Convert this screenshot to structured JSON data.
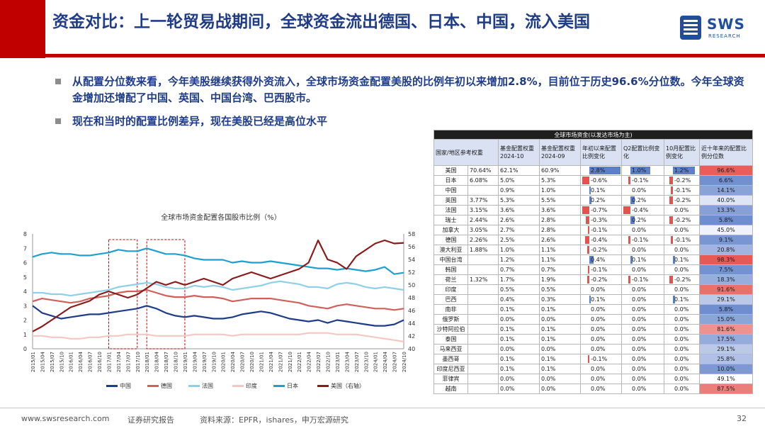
{
  "header": {
    "title": "资金对比：上一轮贸易战期间，全球资金流出德国、日本、中国，流入美国",
    "logo_text": "SWS",
    "logo_sub": "RESEARCH"
  },
  "bullets": [
    "从配置分位数来看，今年美股继续获得外资流入，全球市场资金配置美股的比例年初以来增加2.8%，目前位于历史96.6%分位数。今年全球资金增加还增配了中国、英国、中国台湾、巴西股市。",
    "现在和当时的配置比例差异，现在美股已经是高位水平"
  ],
  "footer": {
    "url": "www.swsresearch.com",
    "report": "证券研究报告",
    "source": "资料来源：EPFR，ishares，申万宏源研究",
    "page": "32"
  },
  "colors": {
    "china": "#1f3c88",
    "germany": "#d0605a",
    "france": "#8fcfe8",
    "india": "#f4c7c3",
    "japan": "#1f9fd0",
    "usa": "#8b1a1a",
    "accent": "#c00000"
  },
  "chart_data": {
    "type": "line",
    "title": "全球市场资金配置各国股市比例（%）",
    "x_ticks": [
      "2015/01",
      "2015/04",
      "2015/07",
      "2015/10",
      "2016/01",
      "2016/04",
      "2016/07",
      "2016/10",
      "2017/01",
      "2017/04",
      "2017/07",
      "2017/10",
      "2018/01",
      "2018/04",
      "2018/07",
      "2018/10",
      "2019/01",
      "2019/04",
      "2019/07",
      "2019/10",
      "2020/01",
      "2020/04",
      "2020/07",
      "2020/10",
      "2021/01",
      "2021/04",
      "2021/07",
      "2021/10",
      "2022/01",
      "2022/04",
      "2022/07",
      "2022/10",
      "2023/01",
      "2023/04",
      "2023/07",
      "2023/10",
      "2024/01",
      "2024/04",
      "2024/07",
      "2024/10"
    ],
    "y_left_ticks": [
      "0",
      "1",
      "2",
      "3",
      "4",
      "5",
      "6",
      "7",
      "8"
    ],
    "y_right_ticks": [
      "40",
      "42",
      "44",
      "46",
      "48",
      "50",
      "52",
      "54",
      "56",
      "58"
    ],
    "ylim_left": [
      0,
      8
    ],
    "ylim_right": [
      40,
      58
    ],
    "series": [
      {
        "name": "中国",
        "axis": "left",
        "values": [
          3.0,
          2.5,
          2.3,
          2.1,
          2.2,
          2.3,
          2.4,
          2.4,
          2.5,
          2.6,
          2.7,
          2.8,
          3.0,
          2.8,
          2.5,
          2.3,
          2.2,
          2.3,
          2.2,
          2.1,
          2.1,
          2.2,
          2.4,
          2.5,
          2.6,
          2.5,
          2.3,
          2.1,
          2.0,
          1.9,
          2.0,
          1.8,
          2.0,
          1.9,
          1.8,
          1.7,
          1.6,
          1.6,
          1.7,
          2.0
        ]
      },
      {
        "name": "德国",
        "axis": "left",
        "values": [
          3.3,
          3.5,
          3.4,
          3.3,
          3.2,
          3.3,
          3.5,
          3.6,
          3.7,
          3.9,
          4.0,
          4.0,
          4.1,
          3.9,
          3.7,
          3.6,
          3.6,
          3.7,
          3.6,
          3.6,
          3.5,
          3.3,
          3.4,
          3.5,
          3.5,
          3.5,
          3.4,
          3.3,
          3.2,
          3.0,
          2.9,
          2.8,
          3.0,
          3.1,
          3.0,
          2.9,
          2.8,
          2.8,
          2.7,
          2.8
        ]
      },
      {
        "name": "法国",
        "axis": "left",
        "values": [
          3.9,
          3.9,
          3.8,
          3.8,
          3.7,
          3.8,
          3.9,
          4.0,
          4.1,
          4.3,
          4.4,
          4.5,
          4.6,
          4.5,
          4.3,
          4.2,
          4.2,
          4.4,
          4.3,
          4.4,
          4.3,
          4.1,
          4.2,
          4.3,
          4.4,
          4.6,
          4.7,
          4.6,
          4.5,
          4.3,
          4.3,
          4.2,
          4.5,
          4.6,
          4.5,
          4.3,
          4.2,
          4.3,
          4.2,
          4.1
        ]
      },
      {
        "name": "印度",
        "axis": "left",
        "values": [
          0.9,
          0.9,
          0.8,
          0.8,
          0.7,
          0.7,
          0.8,
          0.8,
          0.9,
          0.9,
          1.0,
          1.0,
          1.0,
          0.9,
          0.9,
          0.9,
          0.9,
          1.0,
          1.0,
          1.0,
          1.0,
          0.9,
          1.0,
          1.0,
          1.0,
          1.0,
          1.0,
          1.0,
          1.0,
          1.1,
          1.1,
          1.1,
          1.0,
          1.0,
          1.0,
          0.9,
          0.8,
          0.7,
          0.6,
          0.5
        ]
      },
      {
        "name": "日本",
        "axis": "left",
        "values": [
          6.4,
          6.6,
          6.7,
          6.6,
          6.6,
          6.5,
          6.5,
          6.6,
          6.7,
          6.9,
          6.8,
          6.8,
          7.0,
          6.8,
          6.6,
          6.6,
          6.5,
          6.3,
          6.2,
          6.2,
          6.2,
          6.0,
          6.1,
          6.0,
          6.0,
          6.1,
          6.0,
          5.9,
          5.8,
          5.7,
          5.6,
          5.6,
          5.5,
          5.6,
          5.5,
          5.4,
          5.5,
          5.7,
          5.2,
          5.3
        ]
      },
      {
        "name": "美国（右轴）",
        "axis": "right",
        "values": [
          42.7,
          43.5,
          44.5,
          45.5,
          46.5,
          47.0,
          47.5,
          48.5,
          49.0,
          48.5,
          48.0,
          48.5,
          49.5,
          50.5,
          50.0,
          50.5,
          50.0,
          50.5,
          51.0,
          50.5,
          50.0,
          51.0,
          51.5,
          52.0,
          51.5,
          51.0,
          51.5,
          52.0,
          52.5,
          53.5,
          57.0,
          54.0,
          53.5,
          52.5,
          54.5,
          55.5,
          56.5,
          57.0,
          56.5,
          56.6
        ]
      }
    ],
    "highlight_ranges": [
      [
        "2017/01",
        "2017/10"
      ],
      [
        "2018/01",
        "2019/01"
      ]
    ]
  },
  "table": {
    "title": "全球市场资金(以发达市场为主)",
    "headers": [
      "国家/地区参考权重",
      "基金配置权重2024-10",
      "基金配置权重2024-09",
      "年初以来配置比例变化",
      "Q2配置比例变化",
      "10月配置比例变化",
      "近十年来的配置比例分位数"
    ],
    "rows": [
      {
        "name": "美国",
        "weight": "70.64%",
        "w10": "62.1%",
        "w09": "60.9%",
        "ytd": "2.8%",
        "q2": "1.0%",
        "m10": "1.2%",
        "pct": "96.6%",
        "ytd_v": 2.8,
        "q2_v": 1.0,
        "m10_v": 1.2,
        "pct_v": 96.6
      },
      {
        "name": "日本",
        "weight": "6.08%",
        "w10": "5.0%",
        "w09": "5.3%",
        "ytd": "-0.6%",
        "q2": "-0.1%",
        "m10": "-0.2%",
        "pct": "6.6%",
        "ytd_v": -0.6,
        "q2_v": -0.1,
        "m10_v": -0.2,
        "pct_v": 6.6
      },
      {
        "name": "中国",
        "weight": "",
        "w10": "0.9%",
        "w09": "1.0%",
        "ytd": "0.1%",
        "q2": "0.0%",
        "m10": "-0.1%",
        "pct": "14.1%",
        "ytd_v": 0.1,
        "q2_v": 0.0,
        "m10_v": -0.1,
        "pct_v": 14.1
      },
      {
        "name": "英国",
        "weight": "3.77%",
        "w10": "5.3%",
        "w09": "5.5%",
        "ytd": "0.2%",
        "q2": "0.2%",
        "m10": "-0.2%",
        "pct": "40.0%",
        "ytd_v": 0.2,
        "q2_v": 0.2,
        "m10_v": -0.2,
        "pct_v": 40.0
      },
      {
        "name": "法国",
        "weight": "3.15%",
        "w10": "3.6%",
        "w09": "3.6%",
        "ytd": "-0.7%",
        "q2": "-0.4%",
        "m10": "0.0%",
        "pct": "13.3%",
        "ytd_v": -0.7,
        "q2_v": -0.4,
        "m10_v": 0.0,
        "pct_v": 13.3
      },
      {
        "name": "瑞士",
        "weight": "2.44%",
        "w10": "2.6%",
        "w09": "2.8%",
        "ytd": "-0.3%",
        "q2": "0.2%",
        "m10": "-0.2%",
        "pct": "5.8%",
        "ytd_v": -0.3,
        "q2_v": 0.2,
        "m10_v": -0.2,
        "pct_v": 5.8
      },
      {
        "name": "加拿大",
        "weight": "3.05%",
        "w10": "2.7%",
        "w09": "2.8%",
        "ytd": "-0.1%",
        "q2": "0.0%",
        "m10": "0.0%",
        "pct": "45.0%",
        "ytd_v": -0.1,
        "q2_v": 0.0,
        "m10_v": 0.0,
        "pct_v": 45.0
      },
      {
        "name": "德国",
        "weight": "2.26%",
        "w10": "2.5%",
        "w09": "2.6%",
        "ytd": "-0.4%",
        "q2": "-0.1%",
        "m10": "-0.1%",
        "pct": "9.1%",
        "ytd_v": -0.4,
        "q2_v": -0.1,
        "m10_v": -0.1,
        "pct_v": 9.1
      },
      {
        "name": "澳大利亚",
        "weight": "1.88%",
        "w10": "1.0%",
        "w09": "1.1%",
        "ytd": "-0.2%",
        "q2": "0.0%",
        "m10": "0.0%",
        "pct": "20.8%",
        "ytd_v": -0.2,
        "q2_v": 0.0,
        "m10_v": 0.0,
        "pct_v": 20.8
      },
      {
        "name": "中国台湾",
        "weight": "",
        "w10": "1.2%",
        "w09": "1.1%",
        "ytd": "0.4%",
        "q2": "0.1%",
        "m10": "0.1%",
        "pct": "98.3%",
        "ytd_v": 0.4,
        "q2_v": 0.1,
        "m10_v": 0.1,
        "pct_v": 98.3
      },
      {
        "name": "韩国",
        "weight": "",
        "w10": "0.7%",
        "w09": "0.7%",
        "ytd": "-0.1%",
        "q2": "0.0%",
        "m10": "0.0%",
        "pct": "7.5%",
        "ytd_v": -0.1,
        "q2_v": 0.0,
        "m10_v": 0.0,
        "pct_v": 7.5
      },
      {
        "name": "荷兰",
        "weight": "1.32%",
        "w10": "1.7%",
        "w09": "1.9%",
        "ytd": "-0.2%",
        "q2": "-0.1%",
        "m10": "-0.2%",
        "pct": "18.3%",
        "ytd_v": -0.2,
        "q2_v": -0.1,
        "m10_v": -0.2,
        "pct_v": 18.3
      },
      {
        "name": "印度",
        "weight": "",
        "w10": "0.5%",
        "w09": "0.5%",
        "ytd": "0.0%",
        "q2": "0.0%",
        "m10": "0.0%",
        "pct": "91.6%",
        "ytd_v": 0.0,
        "q2_v": 0.0,
        "m10_v": 0.0,
        "pct_v": 91.6
      },
      {
        "name": "巴西",
        "weight": "",
        "w10": "0.4%",
        "w09": "0.3%",
        "ytd": "0.1%",
        "q2": "0.0%",
        "m10": "0.1%",
        "pct": "29.1%",
        "ytd_v": 0.1,
        "q2_v": 0.0,
        "m10_v": 0.1,
        "pct_v": 29.1
      },
      {
        "name": "南非",
        "weight": "",
        "w10": "0.1%",
        "w09": "0.1%",
        "ytd": "0.0%",
        "q2": "0.0%",
        "m10": "0.0%",
        "pct": "5.8%",
        "ytd_v": 0.0,
        "q2_v": 0.0,
        "m10_v": 0.0,
        "pct_v": 5.8
      },
      {
        "name": "俄罗斯",
        "weight": "",
        "w10": "0.0%",
        "w09": "0.0%",
        "ytd": "0.0%",
        "q2": "0.0%",
        "m10": "0.0%",
        "pct": "15.0%",
        "ytd_v": 0.0,
        "q2_v": 0.0,
        "m10_v": 0.0,
        "pct_v": 15.0
      },
      {
        "name": "沙特阿拉伯",
        "weight": "",
        "w10": "0.1%",
        "w09": "0.1%",
        "ytd": "0.0%",
        "q2": "0.0%",
        "m10": "0.0%",
        "pct": "81.6%",
        "ytd_v": 0.0,
        "q2_v": 0.0,
        "m10_v": 0.0,
        "pct_v": 81.6
      },
      {
        "name": "泰国",
        "weight": "",
        "w10": "0.1%",
        "w09": "0.1%",
        "ytd": "0.0%",
        "q2": "0.0%",
        "m10": "0.0%",
        "pct": "17.5%",
        "ytd_v": 0.0,
        "q2_v": 0.0,
        "m10_v": 0.0,
        "pct_v": 17.5
      },
      {
        "name": "马来西亚",
        "weight": "",
        "w10": "0.0%",
        "w09": "0.0%",
        "ytd": "0.0%",
        "q2": "0.0%",
        "m10": "0.0%",
        "pct": "29.1%",
        "ytd_v": 0.0,
        "q2_v": 0.0,
        "m10_v": 0.0,
        "pct_v": 29.1
      },
      {
        "name": "墨西哥",
        "weight": "",
        "w10": "0.1%",
        "w09": "0.1%",
        "ytd": "-0.1%",
        "q2": "0.0%",
        "m10": "0.0%",
        "pct": "25.8%",
        "ytd_v": -0.1,
        "q2_v": 0.0,
        "m10_v": 0.0,
        "pct_v": 25.8
      },
      {
        "name": "印度尼西亚",
        "weight": "",
        "w10": "0.1%",
        "w09": "0.1%",
        "ytd": "0.0%",
        "q2": "0.0%",
        "m10": "0.0%",
        "pct": "10.0%",
        "ytd_v": 0.0,
        "q2_v": 0.0,
        "m10_v": 0.0,
        "pct_v": 10.0
      },
      {
        "name": "菲律宾",
        "weight": "",
        "w10": "0.0%",
        "w09": "0.0%",
        "ytd": "0.0%",
        "q2": "0.0%",
        "m10": "0.0%",
        "pct": "49.1%",
        "ytd_v": 0.0,
        "q2_v": 0.0,
        "m10_v": 0.0,
        "pct_v": 49.1
      },
      {
        "name": "越南",
        "weight": "",
        "w10": "0.0%",
        "w09": "0.0%",
        "ytd": "0.0%",
        "q2": "0.0%",
        "m10": "0.0%",
        "pct": "87.5%",
        "ytd_v": 0.0,
        "q2_v": 0.0,
        "m10_v": 0.0,
        "pct_v": 87.5
      }
    ]
  }
}
